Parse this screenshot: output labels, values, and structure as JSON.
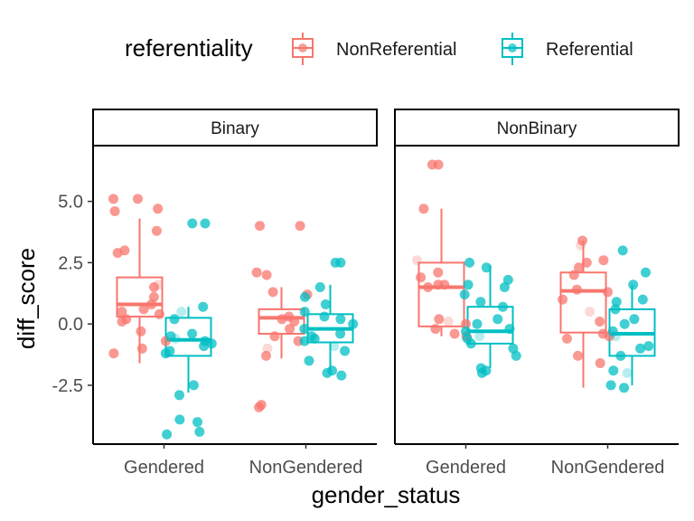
{
  "chart_data": {
    "type": "boxplot",
    "xlabel": "gender_status",
    "ylabel": "diff_score",
    "ylim": [
      -4.9,
      7.2
    ],
    "yticks": [
      5.0,
      2.5,
      0.0,
      -2.5
    ],
    "ytick_labels": [
      "5.0",
      "2.5",
      "0.0",
      "-2.5"
    ],
    "categories": [
      "Gendered",
      "NonGendered"
    ],
    "legend": {
      "title": "referentiality",
      "position": "top",
      "entries": [
        {
          "name": "NonReferential",
          "color": "#F8766D"
        },
        {
          "name": "Referential",
          "color": "#00BFC4"
        }
      ]
    },
    "facets": [
      {
        "name": "Binary",
        "groups": [
          {
            "category": "Gendered",
            "series": "NonReferential",
            "whisker_low": -1.6,
            "q1": 0.3,
            "median": 0.8,
            "q3": 1.9,
            "whisker_high": 4.3
          },
          {
            "category": "Gendered",
            "series": "Referential",
            "whisker_low": -2.8,
            "q1": -1.3,
            "median": -0.65,
            "q3": 0.25,
            "whisker_high": 0.7
          },
          {
            "category": "NonGendered",
            "series": "NonReferential",
            "whisker_low": -1.4,
            "q1": -0.4,
            "median": 0.25,
            "q3": 0.6,
            "whisker_high": 1.5
          },
          {
            "category": "NonGendered",
            "series": "Referential",
            "whisker_low": -1.9,
            "q1": -0.75,
            "median": -0.2,
            "q3": 0.4,
            "whisker_high": 1.6
          }
        ],
        "points": [
          {
            "category": "Gendered",
            "series": "NonReferential",
            "values": [
              5.1,
              5.1,
              4.7,
              4.6,
              3.8,
              3.0,
              2.9,
              1.6,
              1.5,
              1.1,
              0.8,
              0.6,
              0.5,
              0.4,
              0.2,
              0.1,
              -0.3,
              -0.7,
              -1.0,
              -1.2
            ]
          },
          {
            "category": "Gendered",
            "series": "Referential",
            "values": [
              4.1,
              4.1,
              0.7,
              0.5,
              0.2,
              -0.4,
              -0.5,
              -0.6,
              -0.7,
              -0.8,
              -0.9,
              -1.1,
              -1.2,
              -2.5,
              -2.9,
              -3.9,
              -4.0,
              -4.4,
              -4.5
            ]
          },
          {
            "category": "NonGendered",
            "series": "NonReferential",
            "values": [
              4.0,
              4.0,
              2.1,
              2.0,
              1.3,
              1.2,
              0.3,
              0.2,
              0.1,
              -0.2,
              -0.5,
              -0.7,
              -1.0,
              -1.3,
              -3.3,
              -3.4
            ]
          },
          {
            "category": "NonGendered",
            "series": "Referential",
            "values": [
              2.5,
              2.5,
              1.5,
              1.1,
              0.8,
              0.5,
              0.3,
              0.2,
              0.0,
              -0.2,
              -0.4,
              -0.5,
              -0.6,
              -0.7,
              -0.9,
              -1.1,
              -1.5,
              -1.9,
              -2.0,
              -2.1
            ]
          }
        ]
      },
      {
        "name": "NonBinary",
        "groups": [
          {
            "category": "Gendered",
            "series": "NonReferential",
            "whisker_low": -0.5,
            "q1": -0.1,
            "median": 1.5,
            "q3": 2.5,
            "whisker_high": 4.7
          },
          {
            "category": "Gendered",
            "series": "Referential",
            "whisker_low": -1.8,
            "q1": -0.8,
            "median": -0.3,
            "q3": 0.7,
            "whisker_high": 2.4
          },
          {
            "category": "NonGendered",
            "series": "NonReferential",
            "whisker_low": -2.6,
            "q1": -0.35,
            "median": 1.35,
            "q3": 2.1,
            "whisker_high": 3.4
          },
          {
            "category": "NonGendered",
            "series": "Referential",
            "whisker_low": -2.5,
            "q1": -1.3,
            "median": -0.4,
            "q3": 0.6,
            "whisker_high": 1.6
          }
        ],
        "points": [
          {
            "category": "Gendered",
            "series": "NonReferential",
            "values": [
              6.5,
              6.5,
              4.7,
              2.6,
              2.1,
              1.9,
              1.6,
              1.6,
              1.5,
              0.2,
              0.1,
              0.0,
              -0.2,
              -0.4,
              -0.5
            ]
          },
          {
            "category": "Gendered",
            "series": "Referential",
            "values": [
              2.5,
              2.3,
              1.8,
              1.6,
              1.5,
              1.2,
              0.9,
              0.7,
              0.2,
              0.0,
              -0.2,
              -0.3,
              -0.5,
              -0.6,
              -0.8,
              -1.0,
              -1.3,
              -1.8,
              -1.9,
              -2.0
            ]
          },
          {
            "category": "NonGendered",
            "series": "NonReferential",
            "values": [
              3.4,
              3.2,
              2.6,
              2.5,
              2.3,
              2.0,
              1.4,
              1.3,
              1.0,
              0.5,
              0.1,
              -0.4,
              -0.5,
              -0.6,
              -1.3,
              -1.6
            ]
          },
          {
            "category": "NonGendered",
            "series": "Referential",
            "values": [
              3.0,
              2.1,
              1.6,
              1.0,
              0.9,
              0.6,
              0.2,
              0.0,
              -0.3,
              -0.5,
              -0.9,
              -1.0,
              -1.3,
              -1.9,
              -2.0,
              -2.5,
              -2.6
            ]
          }
        ]
      }
    ]
  }
}
